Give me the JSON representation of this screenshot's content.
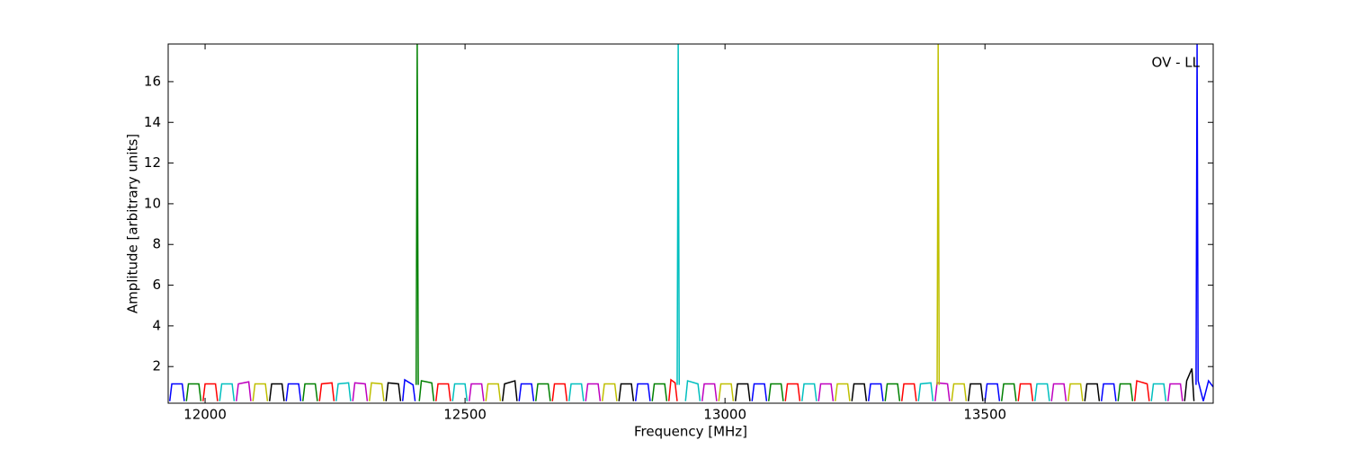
{
  "chart_data": {
    "type": "line",
    "xlabel": "Frequency [MHz]",
    "ylabel": "Amplitude [arbitrary units]",
    "annotation": "OV - LL",
    "xlim": [
      11929,
      13939
    ],
    "ylim": [
      0.2,
      17.85
    ],
    "xticks": [
      12000,
      12500,
      13000,
      13500
    ],
    "yticks": [
      2,
      4,
      6,
      8,
      10,
      12,
      14,
      16
    ],
    "series": [
      {
        "color": "#0000ff",
        "x": [
          11932,
          11936,
          11956,
          11960
        ],
        "values": [
          0.3,
          1.15,
          1.15,
          0.3
        ]
      },
      {
        "color": "#008000",
        "x": [
          11964,
          11968,
          11988,
          11992
        ],
        "values": [
          0.3,
          1.15,
          1.15,
          0.3
        ]
      },
      {
        "color": "#ff0000",
        "x": [
          11996,
          12000,
          12020,
          12024
        ],
        "values": [
          0.3,
          1.15,
          1.15,
          0.3
        ]
      },
      {
        "color": "#00bfbf",
        "x": [
          12028,
          12032,
          12052,
          12056
        ],
        "values": [
          0.3,
          1.15,
          1.15,
          0.3
        ]
      },
      {
        "color": "#bf00bf",
        "x": [
          12060,
          12064,
          12084,
          12088
        ],
        "values": [
          0.3,
          1.15,
          1.25,
          0.3
        ]
      },
      {
        "color": "#bfbf00",
        "x": [
          12092,
          12096,
          12116,
          12120
        ],
        "values": [
          0.3,
          1.15,
          1.15,
          0.3
        ]
      },
      {
        "color": "#000000",
        "x": [
          12124,
          12128,
          12148,
          12152
        ],
        "values": [
          0.3,
          1.15,
          1.15,
          0.3
        ]
      },
      {
        "color": "#0000ff",
        "x": [
          12156,
          12160,
          12180,
          12184
        ],
        "values": [
          0.3,
          1.15,
          1.15,
          0.3
        ]
      },
      {
        "color": "#008000",
        "x": [
          12188,
          12192,
          12212,
          12216
        ],
        "values": [
          0.3,
          1.15,
          1.15,
          0.3
        ]
      },
      {
        "color": "#ff0000",
        "x": [
          12220,
          12224,
          12244,
          12248
        ],
        "values": [
          0.3,
          1.15,
          1.2,
          0.3
        ]
      },
      {
        "color": "#00bfbf",
        "x": [
          12252,
          12256,
          12276,
          12280
        ],
        "values": [
          0.3,
          1.15,
          1.2,
          0.3
        ]
      },
      {
        "color": "#bf00bf",
        "x": [
          12284,
          12288,
          12308,
          12312
        ],
        "values": [
          0.3,
          1.2,
          1.15,
          0.3
        ]
      },
      {
        "color": "#bfbf00",
        "x": [
          12316,
          12320,
          12340,
          12344
        ],
        "values": [
          0.3,
          1.2,
          1.15,
          0.3
        ]
      },
      {
        "color": "#000000",
        "x": [
          12348,
          12352,
          12372,
          12376
        ],
        "values": [
          0.3,
          1.2,
          1.15,
          0.3
        ]
      },
      {
        "color": "#0000ff",
        "x": [
          12380,
          12384,
          12400,
          12404
        ],
        "values": [
          0.3,
          1.35,
          1.1,
          0.3
        ]
      },
      {
        "color": "#008000",
        "x": [
          12412,
          12416,
          12436,
          12440
        ],
        "values": [
          0.3,
          1.3,
          1.2,
          0.3
        ]
      },
      {
        "color": "#ff0000",
        "x": [
          12444,
          12448,
          12468,
          12472
        ],
        "values": [
          0.3,
          1.15,
          1.15,
          0.3
        ]
      },
      {
        "color": "#00bfbf",
        "x": [
          12476,
          12480,
          12500,
          12504
        ],
        "values": [
          0.3,
          1.15,
          1.15,
          0.3
        ]
      },
      {
        "color": "#bf00bf",
        "x": [
          12508,
          12512,
          12532,
          12536
        ],
        "values": [
          0.3,
          1.15,
          1.15,
          0.3
        ]
      },
      {
        "color": "#bfbf00",
        "x": [
          12540,
          12544,
          12564,
          12568
        ],
        "values": [
          0.3,
          1.15,
          1.15,
          0.3
        ]
      },
      {
        "color": "#000000",
        "x": [
          12572,
          12576,
          12596,
          12600
        ],
        "values": [
          0.3,
          1.15,
          1.3,
          0.3
        ]
      },
      {
        "color": "#0000ff",
        "x": [
          12604,
          12608,
          12628,
          12632
        ],
        "values": [
          0.3,
          1.15,
          1.15,
          0.3
        ]
      },
      {
        "color": "#008000",
        "x": [
          12636,
          12640,
          12660,
          12664
        ],
        "values": [
          0.3,
          1.15,
          1.15,
          0.3
        ]
      },
      {
        "color": "#ff0000",
        "x": [
          12668,
          12672,
          12692,
          12696
        ],
        "values": [
          0.3,
          1.15,
          1.15,
          0.3
        ]
      },
      {
        "color": "#00bfbf",
        "x": [
          12700,
          12704,
          12724,
          12728
        ],
        "values": [
          0.3,
          1.15,
          1.15,
          0.3
        ]
      },
      {
        "color": "#bf00bf",
        "x": [
          12732,
          12736,
          12756,
          12760
        ],
        "values": [
          0.3,
          1.15,
          1.15,
          0.3
        ]
      },
      {
        "color": "#bfbf00",
        "x": [
          12764,
          12768,
          12788,
          12792
        ],
        "values": [
          0.3,
          1.15,
          1.15,
          0.3
        ]
      },
      {
        "color": "#000000",
        "x": [
          12796,
          12800,
          12820,
          12824
        ],
        "values": [
          0.3,
          1.15,
          1.15,
          0.3
        ]
      },
      {
        "color": "#0000ff",
        "x": [
          12828,
          12832,
          12852,
          12856
        ],
        "values": [
          0.3,
          1.15,
          1.15,
          0.3
        ]
      },
      {
        "color": "#008000",
        "x": [
          12860,
          12864,
          12884,
          12888
        ],
        "values": [
          0.3,
          1.15,
          1.15,
          0.3
        ]
      },
      {
        "color": "#ff0000",
        "x": [
          12892,
          12896,
          12904,
          12908
        ],
        "values": [
          0.3,
          1.35,
          1.2,
          0.3
        ]
      },
      {
        "color": "#00bfbf",
        "x": [
          12924,
          12928,
          12948,
          12952
        ],
        "values": [
          0.3,
          1.3,
          1.15,
          0.3
        ]
      },
      {
        "color": "#bf00bf",
        "x": [
          12956,
          12960,
          12980,
          12984
        ],
        "values": [
          0.3,
          1.15,
          1.15,
          0.3
        ]
      },
      {
        "color": "#bfbf00",
        "x": [
          12988,
          12992,
          13012,
          13016
        ],
        "values": [
          0.3,
          1.15,
          1.15,
          0.3
        ]
      },
      {
        "color": "#000000",
        "x": [
          13020,
          13024,
          13044,
          13048
        ],
        "values": [
          0.3,
          1.15,
          1.15,
          0.3
        ]
      },
      {
        "color": "#0000ff",
        "x": [
          13052,
          13056,
          13076,
          13080
        ],
        "values": [
          0.3,
          1.15,
          1.15,
          0.3
        ]
      },
      {
        "color": "#008000",
        "x": [
          13084,
          13088,
          13108,
          13112
        ],
        "values": [
          0.3,
          1.15,
          1.15,
          0.3
        ]
      },
      {
        "color": "#ff0000",
        "x": [
          13116,
          13120,
          13140,
          13144
        ],
        "values": [
          0.3,
          1.15,
          1.15,
          0.3
        ]
      },
      {
        "color": "#00bfbf",
        "x": [
          13148,
          13152,
          13172,
          13176
        ],
        "values": [
          0.3,
          1.15,
          1.15,
          0.3
        ]
      },
      {
        "color": "#bf00bf",
        "x": [
          13180,
          13184,
          13204,
          13208
        ],
        "values": [
          0.3,
          1.15,
          1.15,
          0.3
        ]
      },
      {
        "color": "#bfbf00",
        "x": [
          13212,
          13216,
          13236,
          13240
        ],
        "values": [
          0.3,
          1.15,
          1.15,
          0.3
        ]
      },
      {
        "color": "#000000",
        "x": [
          13244,
          13248,
          13268,
          13272
        ],
        "values": [
          0.3,
          1.15,
          1.15,
          0.3
        ]
      },
      {
        "color": "#0000ff",
        "x": [
          13276,
          13280,
          13300,
          13304
        ],
        "values": [
          0.3,
          1.15,
          1.15,
          0.3
        ]
      },
      {
        "color": "#008000",
        "x": [
          13308,
          13312,
          13332,
          13336
        ],
        "values": [
          0.3,
          1.15,
          1.15,
          0.3
        ]
      },
      {
        "color": "#ff0000",
        "x": [
          13340,
          13344,
          13364,
          13368
        ],
        "values": [
          0.3,
          1.15,
          1.15,
          0.3
        ]
      },
      {
        "color": "#00bfbf",
        "x": [
          13372,
          13376,
          13396,
          13400
        ],
        "values": [
          0.3,
          1.15,
          1.2,
          0.3
        ]
      },
      {
        "color": "#bf00bf",
        "x": [
          13404,
          13408,
          13428,
          13432
        ],
        "values": [
          0.3,
          1.2,
          1.15,
          0.3
        ]
      },
      {
        "color": "#bfbf00",
        "x": [
          13436,
          13440,
          13460,
          13464
        ],
        "values": [
          0.3,
          1.15,
          1.15,
          0.3
        ]
      },
      {
        "color": "#000000",
        "x": [
          13468,
          13472,
          13492,
          13496
        ],
        "values": [
          0.3,
          1.15,
          1.15,
          0.3
        ]
      },
      {
        "color": "#0000ff",
        "x": [
          13500,
          13504,
          13524,
          13528
        ],
        "values": [
          0.3,
          1.15,
          1.15,
          0.3
        ]
      },
      {
        "color": "#008000",
        "x": [
          13532,
          13536,
          13556,
          13560
        ],
        "values": [
          0.3,
          1.15,
          1.15,
          0.3
        ]
      },
      {
        "color": "#ff0000",
        "x": [
          13564,
          13568,
          13588,
          13592
        ],
        "values": [
          0.3,
          1.15,
          1.15,
          0.3
        ]
      },
      {
        "color": "#00bfbf",
        "x": [
          13596,
          13600,
          13620,
          13624
        ],
        "values": [
          0.3,
          1.15,
          1.15,
          0.3
        ]
      },
      {
        "color": "#bf00bf",
        "x": [
          13628,
          13632,
          13652,
          13656
        ],
        "values": [
          0.3,
          1.15,
          1.15,
          0.3
        ]
      },
      {
        "color": "#bfbf00",
        "x": [
          13660,
          13664,
          13684,
          13688
        ],
        "values": [
          0.3,
          1.15,
          1.15,
          0.3
        ]
      },
      {
        "color": "#000000",
        "x": [
          13692,
          13696,
          13716,
          13720
        ],
        "values": [
          0.3,
          1.15,
          1.15,
          0.3
        ]
      },
      {
        "color": "#0000ff",
        "x": [
          13724,
          13728,
          13748,
          13752
        ],
        "values": [
          0.3,
          1.15,
          1.15,
          0.3
        ]
      },
      {
        "color": "#008000",
        "x": [
          13756,
          13760,
          13780,
          13784
        ],
        "values": [
          0.3,
          1.15,
          1.15,
          0.3
        ]
      },
      {
        "color": "#ff0000",
        "x": [
          13788,
          13792,
          13812,
          13816
        ],
        "values": [
          0.3,
          1.3,
          1.15,
          0.3
        ]
      },
      {
        "color": "#00bfbf",
        "x": [
          13820,
          13824,
          13844,
          13848
        ],
        "values": [
          0.3,
          1.15,
          1.15,
          0.3
        ]
      },
      {
        "color": "#bf00bf",
        "x": [
          13852,
          13856,
          13876,
          13880
        ],
        "values": [
          0.3,
          1.15,
          1.15,
          0.3
        ]
      },
      {
        "color": "#000000",
        "x": [
          13884,
          13888,
          13898,
          13902
        ],
        "values": [
          0.3,
          1.3,
          1.9,
          0.3
        ]
      },
      {
        "color": "#008000",
        "x": [
          12406,
          12408,
          12410
        ],
        "values": [
          1.1,
          17.85,
          1.1
        ]
      },
      {
        "color": "#00bfbf",
        "x": [
          12908,
          12910,
          12912
        ],
        "values": [
          1.1,
          17.85,
          1.1
        ]
      },
      {
        "color": "#bfbf00",
        "x": [
          13408,
          13410,
          13412
        ],
        "values": [
          1.1,
          17.85,
          1.1
        ]
      },
      {
        "color": "#0000ff",
        "x": [
          13906,
          13908,
          13910,
          13920,
          13930,
          13939
        ],
        "values": [
          1.1,
          17.85,
          1.3,
          0.3,
          1.3,
          1.0
        ]
      }
    ]
  }
}
